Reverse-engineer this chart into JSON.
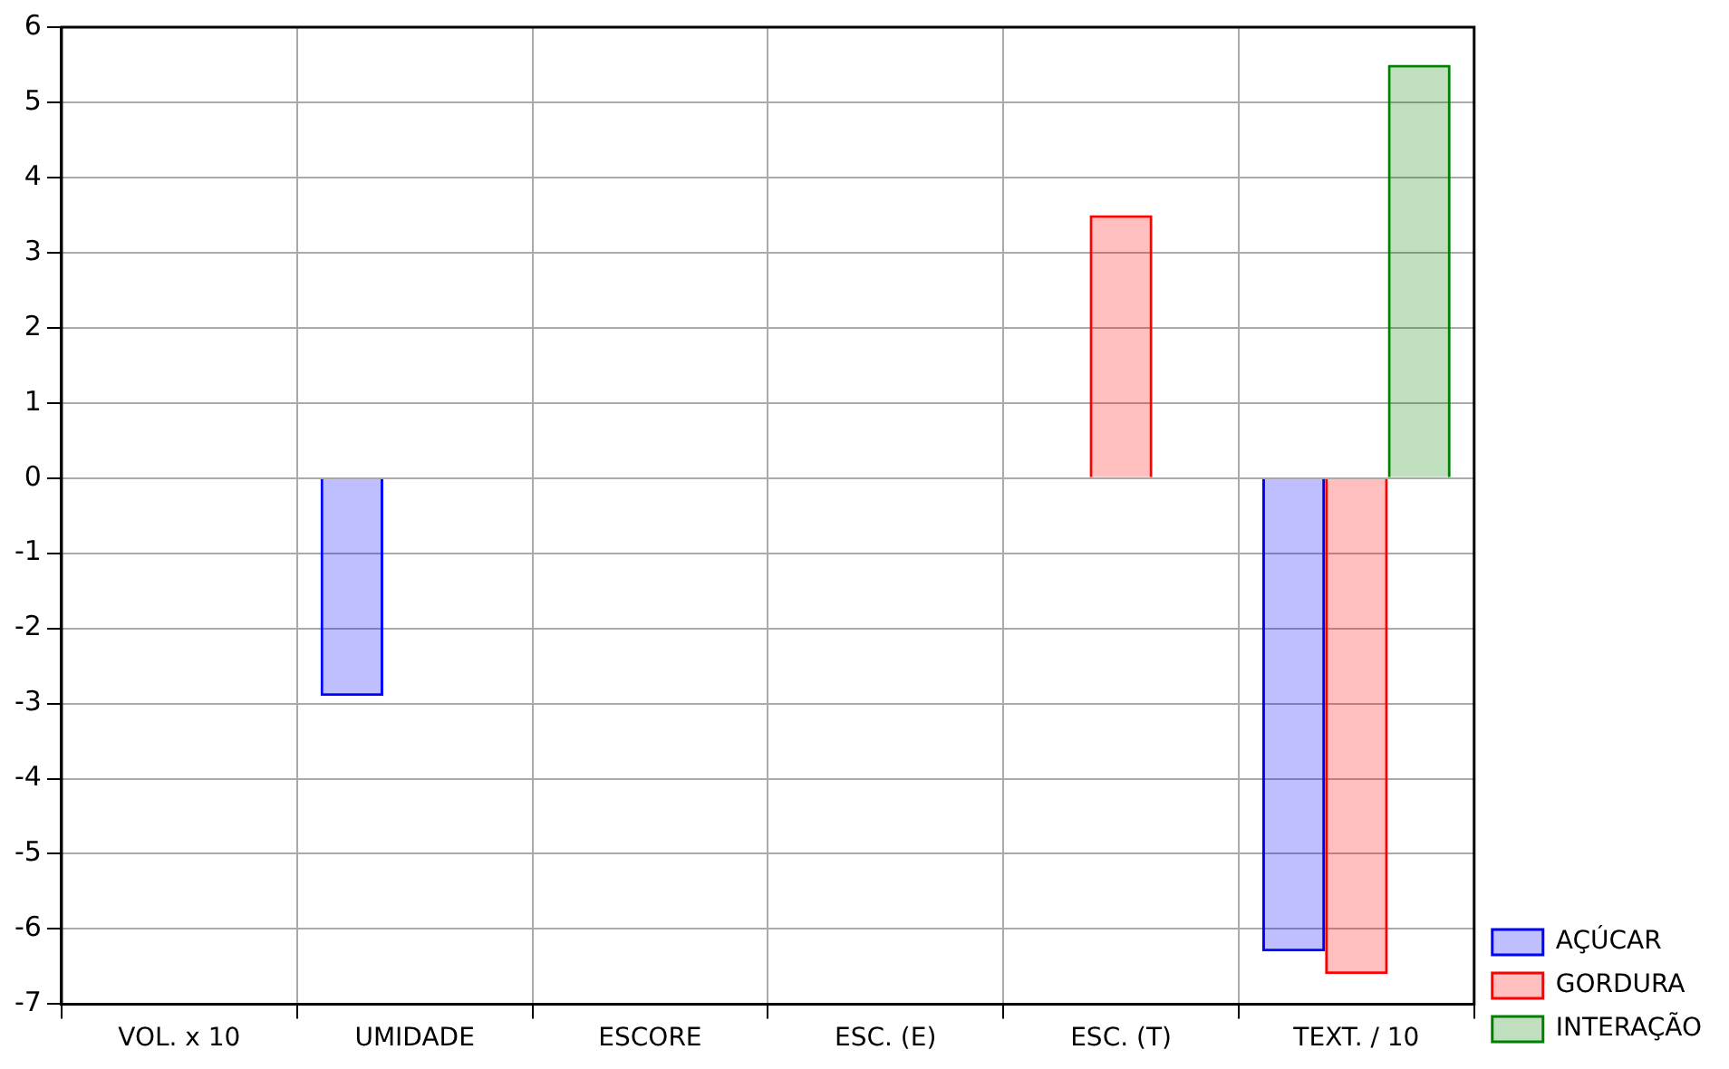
{
  "chart_data": {
    "type": "bar",
    "categories": [
      "VOL. x 10",
      "UMIDADE",
      "ESCORE",
      "ESC. (E)",
      "ESC. (T)",
      "TEXT. / 10"
    ],
    "series": [
      {
        "name": "AÇÚCAR",
        "color": "#0000ff",
        "values": [
          0,
          -2.9,
          0,
          0,
          0,
          -6.3
        ]
      },
      {
        "name": "GORDURA",
        "color": "#ff0000",
        "values": [
          0,
          0,
          0,
          0,
          3.5,
          -6.6
        ]
      },
      {
        "name": "INTERAÇÃO",
        "color": "#008000",
        "values": [
          0,
          0,
          0,
          0,
          0,
          5.5
        ]
      }
    ],
    "ylim": [
      -7,
      6
    ],
    "yticks": [
      -7,
      -6,
      -5,
      -4,
      -3,
      -2,
      -1,
      0,
      1,
      2,
      3,
      4,
      5,
      6
    ],
    "grid": true,
    "legend": "bottom right"
  }
}
